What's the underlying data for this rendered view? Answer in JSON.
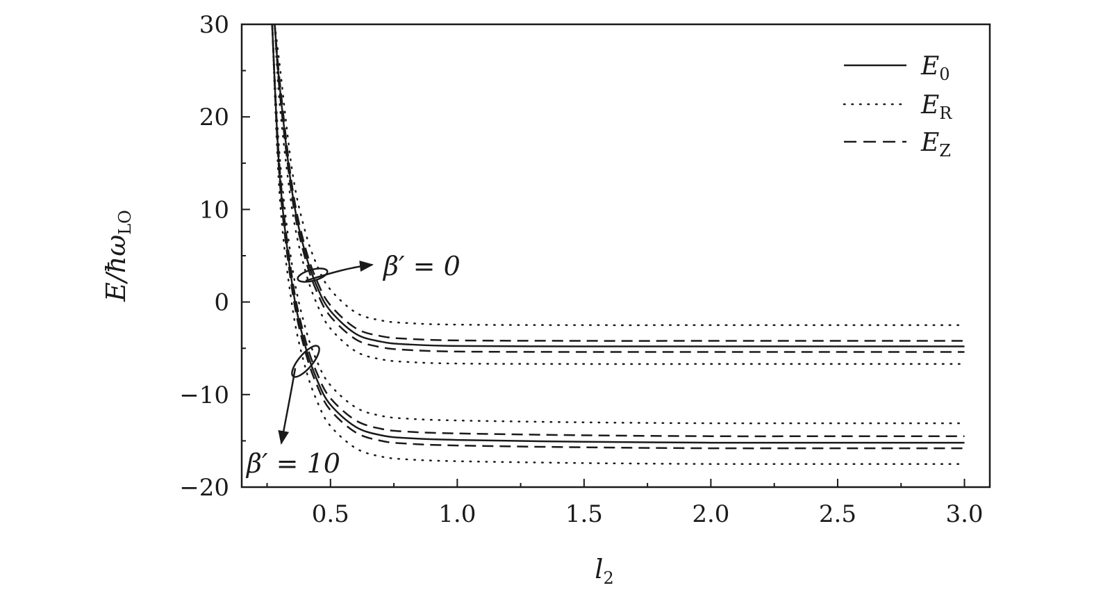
{
  "chart_data": {
    "type": "line",
    "xlabel": "l",
    "xlabel_sub": "2",
    "ylabel": "E/ħω",
    "ylabel_sub": "LO",
    "xlim": [
      0.15,
      3.1
    ],
    "ylim": [
      -20,
      30
    ],
    "xticks": [
      0.5,
      1.0,
      1.5,
      2.0,
      2.5,
      3.0
    ],
    "xtick_labels": [
      "0.5",
      "1.0",
      "1.5",
      "2.0",
      "2.5",
      "3.0"
    ],
    "yticks": [
      30,
      20,
      10,
      0,
      -10,
      -20
    ],
    "ytick_labels": [
      "30",
      "20",
      "10",
      "0",
      "−10",
      "−20"
    ],
    "grid": false,
    "legend_position": "top-right",
    "legend": [
      {
        "label": "E",
        "sub": "0",
        "style": "solid"
      },
      {
        "label": "E",
        "sub": "R",
        "style": "dotted"
      },
      {
        "label": "E",
        "sub": "Z",
        "style": "dashed"
      }
    ],
    "series": [
      {
        "group": "β'=0",
        "style": "solid",
        "x": [
          0.28,
          0.3,
          0.35,
          0.4,
          0.45,
          0.5,
          0.6,
          0.7,
          0.8,
          1.0,
          1.5,
          2.0,
          2.5,
          3.0
        ],
        "y": [
          30.0,
          23.2,
          11.7,
          5.34,
          1.47,
          -0.97,
          -3.44,
          -4.29,
          -4.57,
          -4.75,
          -4.8,
          -4.8,
          -4.8,
          -4.8
        ]
      },
      {
        "group": "β'=0",
        "style": "dashed",
        "x": [
          0.28,
          0.3,
          0.35,
          0.4,
          0.45,
          0.5,
          0.6,
          0.7,
          0.8,
          1.0,
          1.5,
          2.0,
          2.5,
          3.0
        ],
        "y": [
          30.0,
          23.8,
          12.3,
          5.94,
          2.07,
          -0.37,
          -2.84,
          -3.69,
          -3.97,
          -4.15,
          -4.2,
          -4.2,
          -4.2,
          -4.2
        ]
      },
      {
        "group": "β'=0",
        "style": "dashed",
        "x": [
          0.28,
          0.3,
          0.35,
          0.4,
          0.45,
          0.5,
          0.6,
          0.7,
          0.8,
          1.0,
          1.5,
          2.0,
          2.5,
          3.0
        ],
        "y": [
          30.0,
          22.6,
          11.1,
          4.74,
          0.87,
          -1.57,
          -4.04,
          -4.89,
          -5.17,
          -5.35,
          -5.4,
          -5.4,
          -5.4,
          -5.4
        ]
      },
      {
        "group": "β'=0",
        "style": "dotted",
        "x": [
          0.28,
          0.3,
          0.35,
          0.4,
          0.45,
          0.5,
          0.6,
          0.7,
          0.8,
          1.0,
          1.5,
          2.0,
          2.5,
          3.0
        ],
        "y": [
          30.0,
          25.5,
          14.0,
          7.64,
          3.77,
          1.33,
          -1.14,
          -1.99,
          -2.27,
          -2.45,
          -2.5,
          -2.5,
          -2.5,
          -2.5
        ]
      },
      {
        "group": "β'=0",
        "style": "dotted",
        "x": [
          0.28,
          0.3,
          0.35,
          0.4,
          0.45,
          0.5,
          0.6,
          0.7,
          0.8,
          1.0,
          1.5,
          2.0,
          2.5,
          3.0
        ],
        "y": [
          30.0,
          21.3,
          9.8,
          3.44,
          -0.43,
          -2.87,
          -5.34,
          -6.19,
          -6.47,
          -6.65,
          -6.7,
          -6.7,
          -6.7,
          -6.7
        ]
      },
      {
        "group": "β'=10",
        "style": "solid",
        "x": [
          0.27,
          0.3,
          0.35,
          0.4,
          0.45,
          0.5,
          0.6,
          0.7,
          0.8,
          1.0,
          1.5,
          2.0,
          2.5,
          3.0
        ],
        "y": [
          30.0,
          13.6,
          1.72,
          -4.7,
          -8.6,
          -11.1,
          -13.5,
          -14.4,
          -14.7,
          -14.9,
          -15.1,
          -15.2,
          -15.2,
          -15.2
        ]
      },
      {
        "group": "β'=10",
        "style": "dashed",
        "x": [
          0.27,
          0.3,
          0.35,
          0.4,
          0.45,
          0.5,
          0.6,
          0.7,
          0.8,
          1.0,
          1.5,
          2.0,
          2.5,
          3.0
        ],
        "y": [
          30.0,
          14.3,
          2.4,
          -4.0,
          -7.9,
          -10.4,
          -12.8,
          -13.7,
          -14.0,
          -14.2,
          -14.4,
          -14.5,
          -14.5,
          -14.5
        ]
      },
      {
        "group": "β'=10",
        "style": "dashed",
        "x": [
          0.27,
          0.3,
          0.35,
          0.4,
          0.45,
          0.5,
          0.6,
          0.7,
          0.8,
          1.0,
          1.5,
          2.0,
          2.5,
          3.0
        ],
        "y": [
          30.0,
          13.0,
          1.1,
          -5.3,
          -9.2,
          -11.7,
          -14.1,
          -15.0,
          -15.3,
          -15.5,
          -15.7,
          -15.8,
          -15.8,
          -15.8
        ]
      },
      {
        "group": "β'=10",
        "style": "dotted",
        "x": [
          0.27,
          0.3,
          0.35,
          0.4,
          0.45,
          0.5,
          0.6,
          0.7,
          0.8,
          1.0,
          1.5,
          2.0,
          2.5,
          3.0
        ],
        "y": [
          30.0,
          15.6,
          3.7,
          -2.7,
          -6.6,
          -9.0,
          -11.4,
          -12.3,
          -12.6,
          -12.8,
          -13.0,
          -13.1,
          -13.1,
          -13.1
        ]
      },
      {
        "group": "β'=10",
        "style": "dotted",
        "x": [
          0.27,
          0.3,
          0.35,
          0.4,
          0.45,
          0.5,
          0.6,
          0.7,
          0.8,
          1.0,
          1.5,
          2.0,
          2.5,
          3.0
        ],
        "y": [
          30.0,
          11.3,
          -0.6,
          -7.0,
          -10.9,
          -13.4,
          -15.8,
          -16.7,
          -17.0,
          -17.2,
          -17.4,
          -17.5,
          -17.5,
          -17.5
        ]
      }
    ],
    "annotations": [
      {
        "text": "β′ = 0",
        "type": "ellipse-arrow"
      },
      {
        "text": "β′ = 10",
        "type": "ellipse-arrow"
      }
    ]
  }
}
